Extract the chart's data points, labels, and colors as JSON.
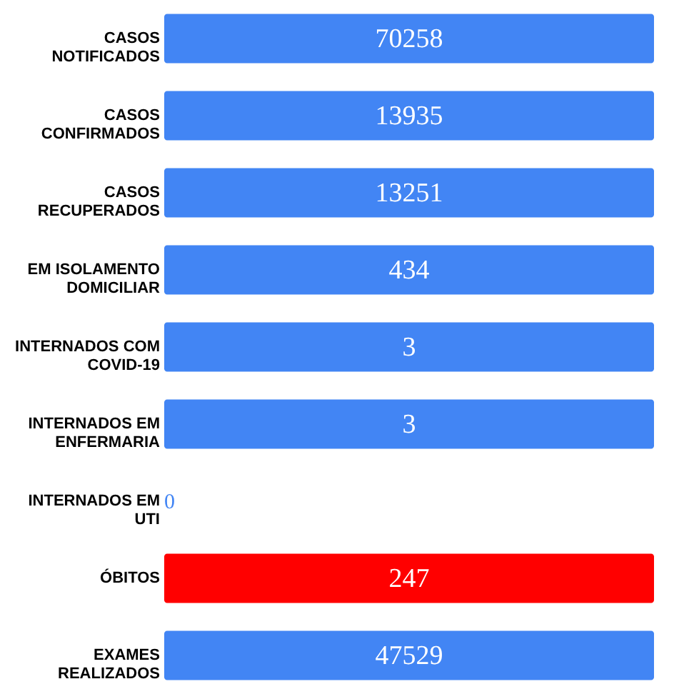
{
  "chart_data": {
    "type": "other",
    "categories": [
      "CASOS NOTIFICADOS",
      "CASOS CONFIRMADOS",
      "CASOS RECUPERADOS",
      "EM ISOLAMENTO DOMICILIAR",
      "INTERNADOS COM COVID-19",
      "INTERNADOS EM ENFERMARIA",
      "INTERNADOS EM UTI",
      "ÓBITOS",
      "EXAMES REALIZADOS"
    ],
    "values": [
      70258,
      13935,
      13251,
      434,
      3,
      3,
      0,
      247,
      47529
    ],
    "colors": [
      "#4285f4",
      "#4285f4",
      "#4285f4",
      "#4285f4",
      "#4285f4",
      "#4285f4",
      "#4285f4",
      "#ff0000",
      "#4285f4"
    ],
    "data_labels": true
  }
}
